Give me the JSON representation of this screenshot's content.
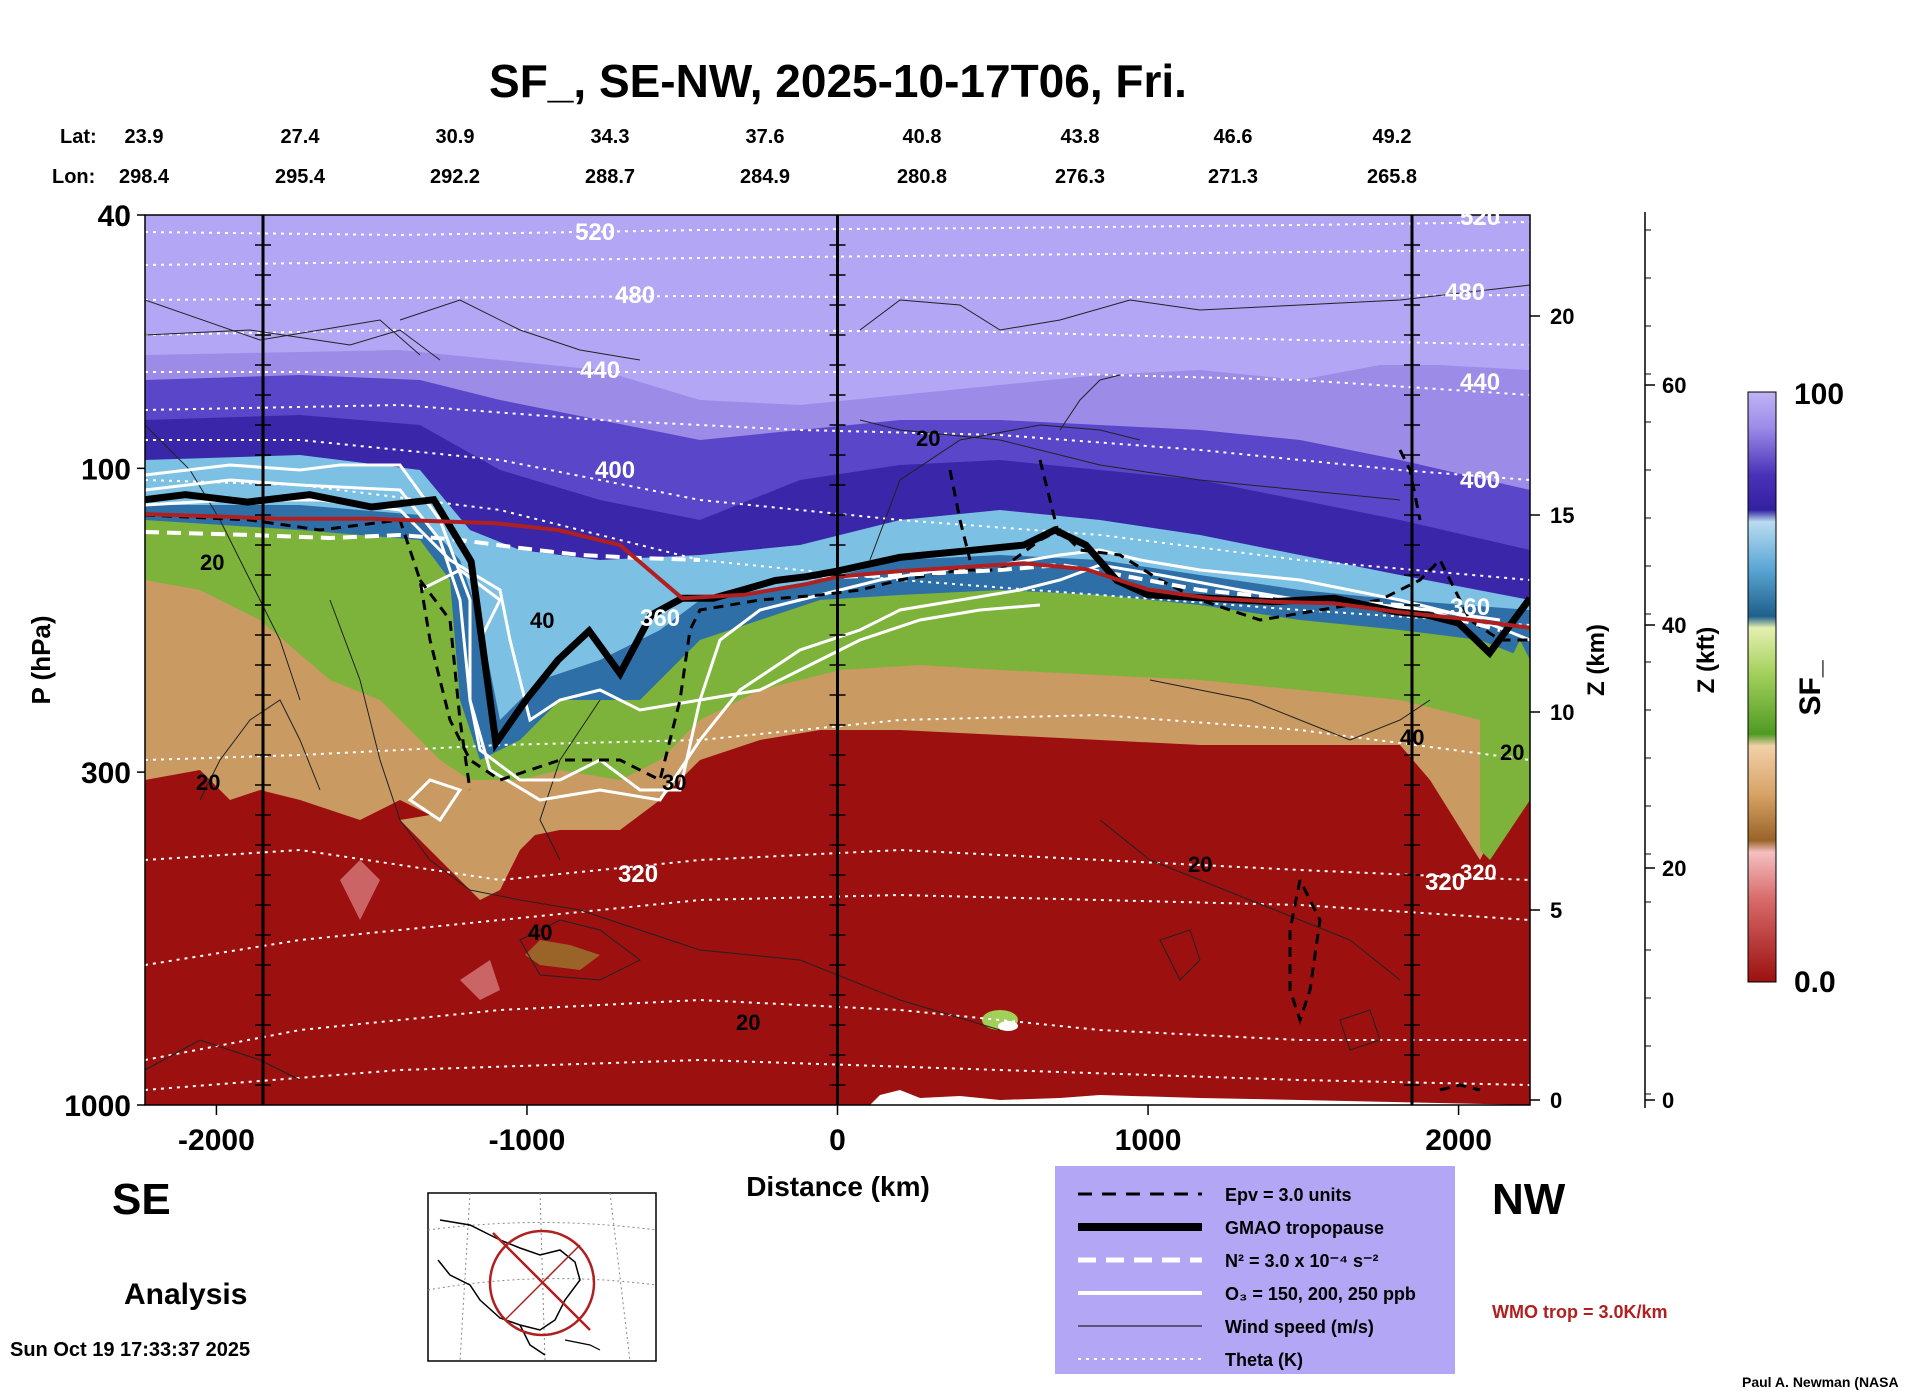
{
  "title": "SF_, SE-NW, 2025-10-17T06, Fri.",
  "lat_label": "Lat:",
  "lon_label": "Lon:",
  "lats": [
    "23.9",
    "27.4",
    "30.9",
    "34.3",
    "37.6",
    "40.8",
    "43.8",
    "46.6",
    "49.2"
  ],
  "lons": [
    "298.4",
    "295.4",
    "292.2",
    "288.7",
    "284.9",
    "280.8",
    "276.3",
    "271.3",
    "265.8"
  ],
  "y_label": "P (hPa)",
  "x_label": "Distance (km)",
  "z_km_label": "Z (km)",
  "z_kft_label": "Z (kft)",
  "colorbar_label": "SF_",
  "colorbar_max": "100",
  "colorbar_min": "0.0",
  "direction_left": "SE",
  "direction_right": "NW",
  "analysis_label": "Analysis",
  "timestamp": "Sun Oct 19 17:33:37 2025",
  "credit": "Paul A. Newman (NASA",
  "wmo_label": "WMO trop = 3.0K/km",
  "legend": [
    {
      "label": "Epv = 3.0 units",
      "style": "dashed-black"
    },
    {
      "label": "GMAO tropopause",
      "style": "thick-black"
    },
    {
      "label": "N² = 3.0 x 10⁻⁴ s⁻²",
      "style": "dashed-white"
    },
    {
      "label": "O₃ = 150, 200, 250 ppb",
      "style": "solid-white"
    },
    {
      "label": "Wind speed (m/s)",
      "style": "thin-black"
    },
    {
      "label": "Theta (K)",
      "style": "dotted-white"
    }
  ],
  "colors": {
    "stratosphere": "#b3a6f5",
    "deep_purple": "#4a32b8",
    "blue": "#2f6fa8",
    "green": "#7db33a",
    "tan": "#c99a62",
    "red": "#9c1010",
    "tropopause_red": "#b02020",
    "legend_bg": "#b3a6f5"
  },
  "chart_data": {
    "type": "heatmap",
    "title": "SF_, SE-NW, 2025-10-17T06, Fri.",
    "xlabel": "Distance (km)",
    "ylabel": "P (hPa)",
    "xlim": [
      -2230,
      2230
    ],
    "ylim_pressure": [
      1000,
      40
    ],
    "y_scale": "log",
    "x_ticks": [
      -2000,
      -1000,
      0,
      1000,
      2000
    ],
    "y_ticks": [
      40,
      100,
      300,
      1000
    ],
    "z_km_ticks": [
      0,
      5,
      10,
      15,
      20
    ],
    "z_kft_ticks": [
      0,
      20,
      40,
      60
    ],
    "colorbar_range": [
      0.0,
      100
    ],
    "theta_labels": [
      520,
      480,
      440,
      400,
      360,
      320
    ],
    "wind_labels": [
      20,
      40
    ],
    "section_lines_km": [
      -1850,
      0,
      1850
    ],
    "tropopause_gmao": {
      "x": [
        -2230,
        -2100,
        -1900,
        -1700,
        -1500,
        -1300,
        -1180,
        -1100,
        -1000,
        -900,
        -800,
        -700,
        -600,
        -500,
        -400,
        -300,
        -200,
        -100,
        0,
        200,
        400,
        600,
        700,
        800,
        900,
        1000,
        1200,
        1400,
        1600,
        1800,
        1900,
        2000,
        2100,
        2230
      ],
      "p": [
        112,
        110,
        113,
        110,
        115,
        112,
        140,
        270,
        230,
        200,
        180,
        210,
        170,
        160,
        160,
        155,
        150,
        148,
        145,
        138,
        135,
        132,
        125,
        132,
        150,
        158,
        160,
        162,
        160,
        168,
        170,
        175,
        195,
        160
      ]
    },
    "tropopause_wmo": {
      "x": [
        -2230,
        -2000,
        -1800,
        -1500,
        -1300,
        -1100,
        -900,
        -700,
        -500,
        -300,
        -100,
        0,
        200,
        400,
        600,
        800,
        1000,
        1200,
        1400,
        1600,
        1800,
        2000,
        2230
      ],
      "p": [
        118,
        119,
        120,
        120,
        121,
        122,
        125,
        132,
        160,
        158,
        152,
        148,
        145,
        143,
        141,
        144,
        155,
        160,
        162,
        163,
        168,
        172,
        178
      ]
    }
  }
}
